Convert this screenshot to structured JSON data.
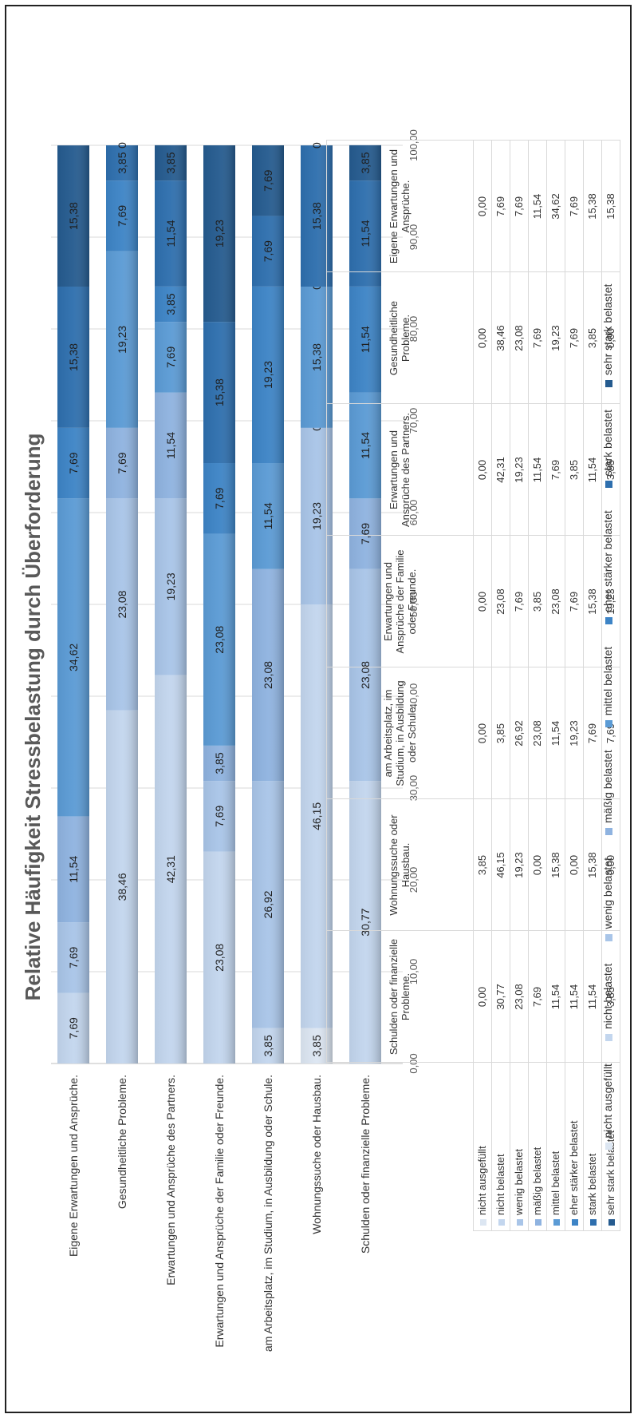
{
  "chart_data": {
    "type": "bar",
    "stacked": true,
    "title": "Relative Häufigkeit Stressbelastung durch Überforderung",
    "categories": [
      "Schulden oder finanzielle Probleme.",
      "Wohnungssuche oder Hausbau.",
      "am Arbeitsplatz, im Studium, in Ausbildung oder Schule.",
      "Erwartungen und Ansprüche der Familie oder Freunde.",
      "Erwartungen und Ansprüche des Partners.",
      "Gesundheitliche Probleme.",
      "Eigene Erwartungen und Ansprüche."
    ],
    "axis_labels": [
      "Eigene Erwartungen und Ansprüche.",
      "Gesundheitliche Probleme.",
      "Erwartungen und Ansprüche des Partners.",
      "Erwartungen und Ansprüche der Familie oder Freunde.",
      "am Arbeitsplatz, im Studium, in Ausbildung oder Schule.",
      "Wohnungssuche oder Hausbau.",
      "Schulden oder finanzielle Probleme."
    ],
    "table_headers": [
      "Schulden oder finanzielle Probleme.",
      "Wohnungssuche oder Hausbau.",
      "am Arbeitsplatz, im Studium, in Ausbildung oder Schule.",
      "Erwartungen und Ansprüche der Familie oder Freunde.",
      "Erwartungen und Ansprüche des Partners.",
      "Gesundheitliche Probleme.",
      "Eigene Erwartungen und Ansprüche."
    ],
    "series": [
      {
        "name": "nicht ausgefüllt",
        "color": "#dce6f2",
        "values": [
          0,
          3.85,
          0,
          0,
          0,
          0,
          0
        ],
        "labels": [
          "0,00",
          "3,85",
          "0,00",
          "0,00",
          "0,00",
          "0,00",
          "0,00"
        ],
        "bar_labels": [
          "0",
          "3,85",
          "0",
          "0",
          "0",
          "0",
          "0"
        ]
      },
      {
        "name": "nicht belastet",
        "color": "#c3d6ee",
        "values": [
          30.77,
          46.15,
          3.85,
          23.08,
          42.31,
          38.46,
          7.69
        ],
        "labels": [
          "30,77",
          "46,15",
          "3,85",
          "23,08",
          "42,31",
          "38,46",
          "7,69"
        ],
        "bar_labels": [
          "30,77",
          "46,15",
          "3,85",
          "23,08",
          "42,31",
          "38,46",
          "7,69"
        ]
      },
      {
        "name": "wenig belastet",
        "color": "#a9c5e8",
        "values": [
          23.08,
          19.23,
          26.92,
          7.69,
          19.23,
          23.08,
          7.69
        ],
        "labels": [
          "23,08",
          "19,23",
          "26,92",
          "7,69",
          "19,23",
          "23,08",
          "7,69"
        ],
        "bar_labels": [
          "23,08",
          "19,23",
          "26,92",
          "7,69",
          "19,23",
          "23,08",
          "7,69"
        ]
      },
      {
        "name": "mäßig belastet",
        "color": "#8fb3e0",
        "values": [
          7.69,
          0,
          23.08,
          3.85,
          11.54,
          7.69,
          11.54
        ],
        "labels": [
          "7,69",
          "0,00",
          "23,08",
          "3,85",
          "11,54",
          "7,69",
          "11,54"
        ],
        "bar_labels": [
          "7,69",
          "0",
          "23,08",
          "3,85",
          "11,54",
          "7,69",
          "11,54"
        ]
      },
      {
        "name": "mittel belastet",
        "color": "#5b9bd5",
        "values": [
          11.54,
          15.38,
          11.54,
          23.08,
          7.69,
          19.23,
          34.62
        ],
        "labels": [
          "11,54",
          "15,38",
          "11,54",
          "23,08",
          "7,69",
          "19,23",
          "34,62"
        ],
        "bar_labels": [
          "11,54",
          "15,38",
          "11,54",
          "23,08",
          "7,69",
          "19,23",
          "34,62"
        ]
      },
      {
        "name": "eher stärker belastet",
        "color": "#3d84c6",
        "values": [
          11.54,
          0,
          19.23,
          7.69,
          3.85,
          7.69,
          7.69
        ],
        "labels": [
          "11,54",
          "0,00",
          "19,23",
          "7,69",
          "3,85",
          "7,69",
          "7,69"
        ],
        "bar_labels": [
          "11,54",
          "0",
          "19,23",
          "7,69",
          "3,85",
          "7,69",
          "7,69"
        ]
      },
      {
        "name": "stark belastet",
        "color": "#2e6fae",
        "values": [
          11.54,
          15.38,
          7.69,
          15.38,
          11.54,
          3.85,
          15.38
        ],
        "labels": [
          "11,54",
          "15,38",
          "7,69",
          "15,38",
          "11,54",
          "3,85",
          "15,38"
        ],
        "bar_labels": [
          "11,54",
          "15,38",
          "7,69",
          "15,38",
          "11,54",
          "3,85",
          "15,38"
        ]
      },
      {
        "name": "sehr stark belastet",
        "color": "#255b8f",
        "values": [
          3.85,
          0,
          7.69,
          19.23,
          3.85,
          0,
          15.38
        ],
        "labels": [
          "3,85",
          "0,00",
          "7,69",
          "19,23",
          "3,85",
          "0,00",
          "15,38"
        ],
        "bar_labels": [
          "3,85",
          "0",
          "7,69",
          "19,23",
          "3,85",
          "0",
          "15,38"
        ]
      }
    ],
    "ylim": [
      0,
      100
    ],
    "ticks": [
      "0,00",
      "10,00",
      "20,00",
      "30,00",
      "40,00",
      "50,00",
      "60,00",
      "70,00",
      "80,00",
      "90,00",
      "100,00"
    ],
    "grid": true,
    "legend_position": "bottom"
  }
}
